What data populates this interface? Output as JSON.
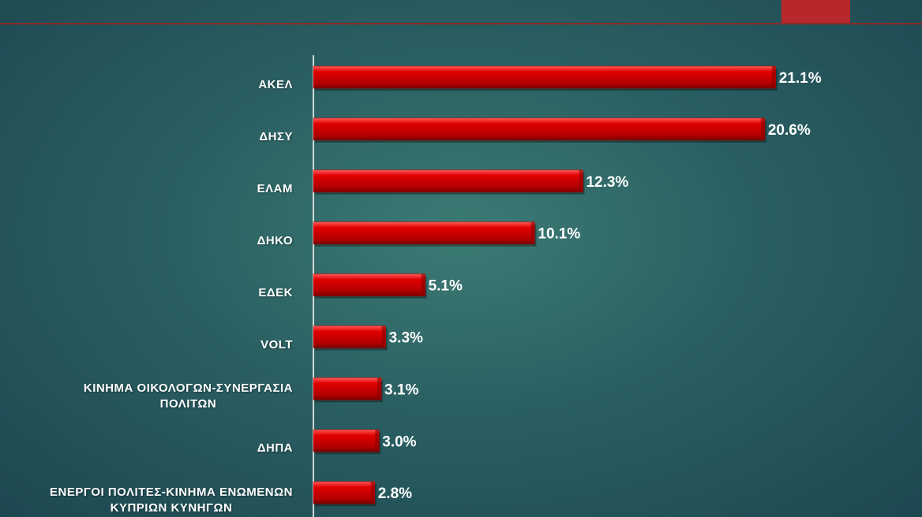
{
  "chart_data": {
    "type": "bar",
    "orientation": "horizontal",
    "categories": [
      "ΑΚΕΛ",
      "ΔΗΣΥ",
      "ΕΛΑΜ",
      "ΔΗΚΟ",
      "ΕΔΕΚ",
      "VOLT",
      "ΚΙΝΗΜΑ ΟΙΚΟΛΟΓΩΝ-ΣΥΝΕΡΓΑΣΙΑ\nΠΟΛΙΤΩΝ",
      "ΔΗΠΑ",
      "ΕΝΕΡΓΟΙ ΠΟΛΙΤΕΣ-ΚΙΝΗΜΑ ΕΝΩΜΕΝΩΝ\nΚΥΠΡΙΩΝ ΚΥΝΗΓΩΝ"
    ],
    "values": [
      21.1,
      20.6,
      12.3,
      10.1,
      5.1,
      3.3,
      3.1,
      3.0,
      2.8
    ],
    "value_labels": [
      "21.1%",
      "20.6%",
      "12.3%",
      "10.1%",
      "5.1%",
      "3.3%",
      "3.1%",
      "3.0%",
      "2.8%"
    ],
    "color": "#c80000",
    "xlim": [
      0,
      25
    ]
  }
}
